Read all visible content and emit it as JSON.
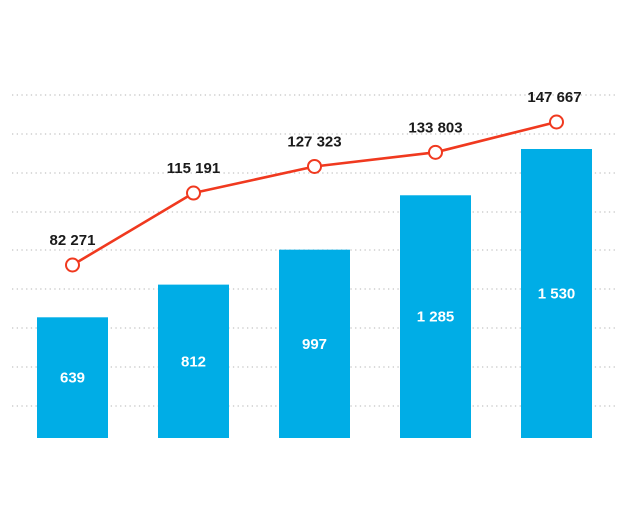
{
  "chart_data": {
    "type": "bar",
    "categories": [
      "",
      "",
      "",
      "",
      ""
    ],
    "series": [
      {
        "type": "bar",
        "values": [
          639,
          812,
          997,
          1285,
          1530
        ],
        "labels": [
          "639",
          "812",
          "997",
          "1 285",
          "1 530"
        ],
        "color": "#00ade6",
        "ylim": [
          0,
          1530
        ]
      },
      {
        "type": "line",
        "values": [
          82271,
          115191,
          127323,
          133803,
          147667
        ],
        "labels": [
          "82 271",
          "115 191",
          "127 323",
          "133 803",
          "147 667"
        ],
        "color": "#f0391f",
        "ylim": [
          0,
          160000
        ]
      }
    ],
    "title": "",
    "xlabel": "",
    "ylabel": "",
    "grid": true,
    "grid_style": "dotted",
    "legend": "none"
  },
  "colors": {
    "bar": "#00ade6",
    "line": "#f0391f",
    "grid": "#c4c4c4",
    "marker_fill": "#ffffff",
    "label_dark": "#1a1a1a",
    "label_light": "#ffffff"
  }
}
